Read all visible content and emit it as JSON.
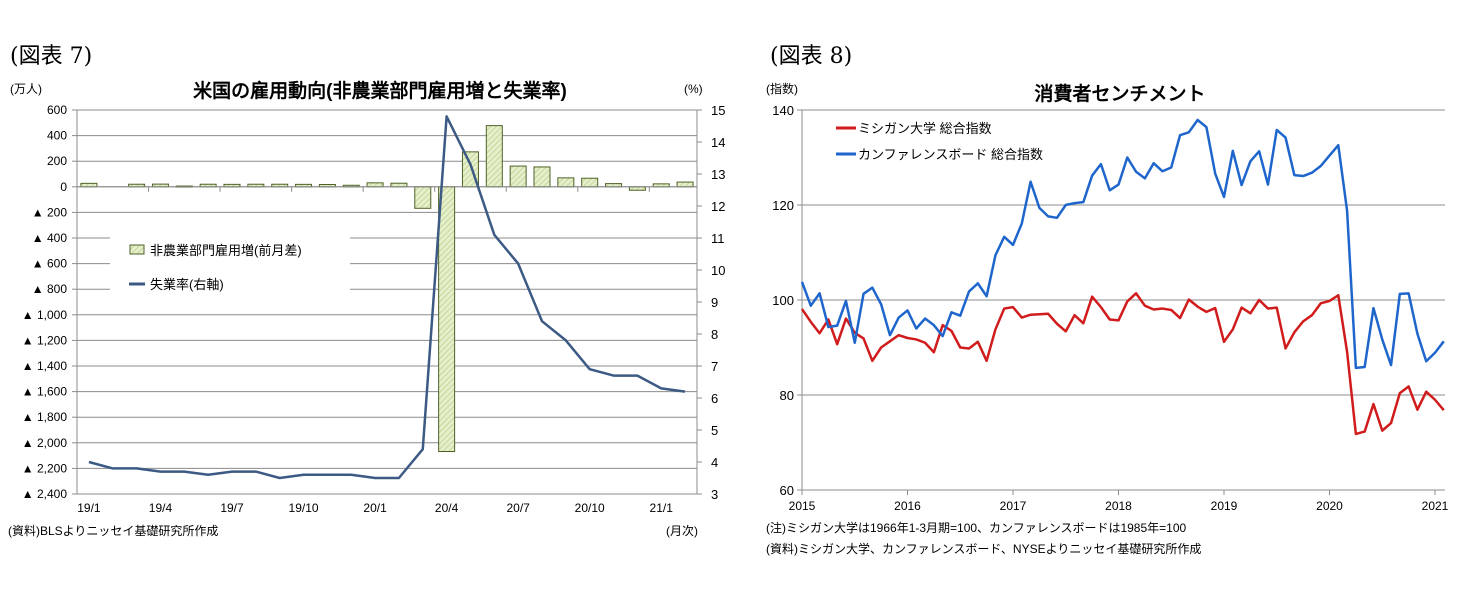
{
  "figures": [
    {
      "label": "(図表 7)"
    },
    {
      "label": "(図表 8)"
    }
  ],
  "chart_data": [
    {
      "type": "bar",
      "title": "米国の雇用動向(非農業部門雇用増と失業率)",
      "left_unit": "(万人)",
      "right_unit": "(%)",
      "x_unit": "(月次)",
      "source": "(資料)BLSよりニッセイ基礎研究所作成",
      "categories": [
        "19/1",
        "19/2",
        "19/3",
        "19/4",
        "19/5",
        "19/6",
        "19/7",
        "19/8",
        "19/9",
        "19/10",
        "19/11",
        "19/12",
        "20/1",
        "20/2",
        "20/3",
        "20/4",
        "20/5",
        "20/6",
        "20/7",
        "20/8",
        "20/9",
        "20/10",
        "20/11",
        "20/12",
        "21/1",
        "21/2"
      ],
      "x_tick_labels": [
        "19/1",
        "19/4",
        "19/7",
        "19/10",
        "20/1",
        "20/4",
        "20/7",
        "20/10",
        "21/1"
      ],
      "y_left_ticks": [
        "600",
        "400",
        "200",
        "0",
        "▲ 200",
        "▲ 400",
        "▲ 600",
        "▲ 800",
        "▲ 1,000",
        "▲ 1,200",
        "▲ 1,400",
        "▲ 1,600",
        "▲ 1,800",
        "▲ 2,000",
        "▲ 2,200",
        "▲ 2,400"
      ],
      "y_left_range": [
        -2400,
        600
      ],
      "y_right_ticks": [
        "15",
        "14",
        "13",
        "12",
        "11",
        "10",
        "9",
        "8",
        "7",
        "6",
        "5",
        "4",
        "3"
      ],
      "y_right_range": [
        3,
        15
      ],
      "legend": {
        "position": "left-middle",
        "entries": [
          "非農業部門雇用増(前月差)",
          "失業率(右軸)"
        ]
      },
      "series": [
        {
          "name": "非農業部門雇用増(前月差)",
          "type": "bar",
          "axis": "left",
          "color": "#d6e4b0",
          "edge": "#4f6228",
          "values": [
            27,
            0,
            20,
            21,
            6,
            20,
            19,
            20,
            20,
            19,
            18,
            12,
            31,
            28,
            -168,
            -2068,
            273,
            478,
            162,
            155,
            70,
            67,
            25,
            -27,
            23,
            37
          ]
        },
        {
          "name": "失業率(右軸)",
          "type": "line",
          "axis": "right",
          "color": "#3c5a84",
          "values": [
            4.0,
            3.8,
            3.8,
            3.7,
            3.7,
            3.6,
            3.7,
            3.7,
            3.5,
            3.6,
            3.6,
            3.6,
            3.5,
            3.5,
            4.4,
            14.8,
            13.3,
            11.1,
            10.2,
            8.4,
            7.8,
            6.9,
            6.7,
            6.7,
            6.3,
            6.2
          ]
        }
      ]
    },
    {
      "type": "line",
      "title": "消費者センチメント",
      "y_unit": "(指数)",
      "ylim": [
        60,
        140
      ],
      "y_ticks": [
        "140",
        "120",
        "100",
        "80",
        "60"
      ],
      "x_tick_labels": [
        "2015",
        "2016",
        "2017",
        "2018",
        "2019",
        "2020",
        "2021"
      ],
      "xlim": [
        2015,
        2021.2
      ],
      "notes": [
        "(注)ミシガン大学は1966年1-3月期=100、カンファレンスボードは1985年=100",
        "(資料)ミシガン大学、カンファレンスボード、NYSEよりニッセイ基礎研究所作成"
      ],
      "legend": {
        "position": "top-left",
        "entries": [
          "ミシガン大学 総合指数",
          "カンファレンスボード 総合指数"
        ]
      },
      "start": "2015-01",
      "series": [
        {
          "name": "ミシガン大学 総合指数",
          "color": "#d01c1c",
          "values": [
            98.1,
            95.4,
            93.0,
            95.9,
            90.7,
            96.1,
            93.1,
            91.9,
            87.2,
            90.0,
            91.3,
            92.6,
            92.0,
            91.7,
            91.0,
            89.0,
            94.7,
            93.5,
            90.0,
            89.8,
            91.2,
            87.2,
            93.8,
            98.2,
            98.5,
            96.3,
            96.9,
            97.0,
            97.1,
            95.0,
            93.4,
            96.8,
            95.1,
            100.7,
            98.5,
            95.9,
            95.7,
            99.7,
            101.4,
            98.8,
            98.0,
            98.2,
            97.9,
            96.2,
            100.1,
            98.6,
            97.5,
            98.3,
            91.2,
            93.8,
            98.4,
            97.2,
            100.0,
            98.2,
            98.4,
            89.8,
            93.2,
            95.5,
            96.8,
            99.3,
            99.8,
            101.0,
            89.1,
            71.8,
            72.3,
            78.1,
            72.5,
            74.1,
            80.4,
            81.8,
            76.9,
            80.7,
            79.0,
            76.8
          ]
        },
        {
          "name": "カンファレンスボード 総合指数",
          "color": "#1f66cc",
          "values": [
            103.8,
            98.8,
            101.4,
            94.3,
            94.6,
            99.8,
            91.0,
            101.3,
            102.6,
            99.1,
            92.6,
            96.3,
            97.8,
            94.0,
            96.1,
            94.7,
            92.4,
            97.4,
            96.7,
            101.8,
            103.5,
            100.8,
            109.4,
            113.3,
            111.6,
            116.1,
            124.9,
            119.4,
            117.6,
            117.3,
            120.0,
            120.4,
            120.6,
            126.2,
            128.6,
            123.1,
            124.3,
            130.0,
            127.0,
            125.6,
            128.8,
            127.1,
            127.9,
            134.7,
            135.3,
            137.9,
            136.4,
            126.6,
            121.7,
            131.4,
            124.2,
            129.2,
            131.3,
            124.3,
            135.8,
            134.2,
            126.3,
            126.1,
            126.8,
            128.2,
            130.4,
            132.6,
            118.8,
            85.7,
            85.9,
            98.3,
            91.7,
            86.3,
            101.3,
            101.4,
            92.9,
            87.1,
            88.9,
            91.3
          ]
        }
      ]
    }
  ]
}
